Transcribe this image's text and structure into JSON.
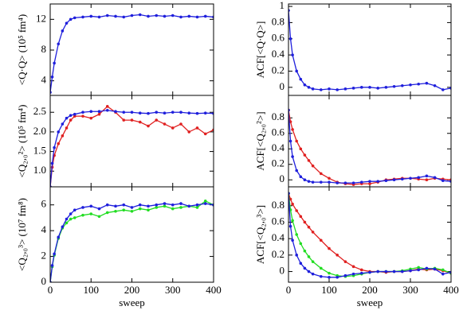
{
  "chart_data": [
    {
      "type": "line",
      "ylabel": "<Q·Q> (10⁵ fm⁴)",
      "show_xtick_labels": false,
      "x": [
        0,
        5,
        10,
        20,
        30,
        40,
        50,
        60,
        80,
        100,
        120,
        140,
        160,
        180,
        200,
        220,
        240,
        260,
        280,
        300,
        320,
        340,
        360,
        380,
        400
      ],
      "xlim": [
        0,
        400
      ],
      "xticks": [
        0,
        100,
        200,
        300,
        400
      ],
      "ylim": [
        2.1,
        14.0
      ],
      "yticks": [
        4,
        8,
        12
      ],
      "series": [
        {
          "color": "#1f1fdc",
          "values": [
            2.5,
            4.5,
            6.3,
            8.8,
            10.5,
            11.5,
            12.0,
            12.2,
            12.3,
            12.4,
            12.3,
            12.5,
            12.4,
            12.3,
            12.5,
            12.6,
            12.4,
            12.5,
            12.4,
            12.5,
            12.3,
            12.4,
            12.3,
            12.4,
            12.3
          ]
        }
      ]
    },
    {
      "type": "line",
      "ylabel": "ACF[<Q·Q>]",
      "show_xtick_labels": false,
      "x": [
        0,
        5,
        10,
        20,
        30,
        40,
        50,
        60,
        80,
        100,
        120,
        140,
        160,
        180,
        200,
        220,
        240,
        260,
        280,
        300,
        320,
        340,
        360,
        380,
        400
      ],
      "xlim": [
        0,
        400
      ],
      "xticks": [
        0,
        100,
        200,
        300,
        400
      ],
      "ylim": [
        -0.1,
        1.03
      ],
      "yticks": [
        0,
        0.2,
        0.4,
        0.6,
        0.8,
        1
      ],
      "series": [
        {
          "color": "#1f1fdc",
          "values": [
            0.95,
            0.6,
            0.4,
            0.2,
            0.1,
            0.03,
            0,
            -0.02,
            -0.03,
            -0.02,
            -0.03,
            -0.02,
            -0.01,
            0,
            0,
            -0.01,
            0,
            0.01,
            0.02,
            0.03,
            0.04,
            0.05,
            0.02,
            -0.03,
            -0.01
          ]
        }
      ]
    },
    {
      "type": "line",
      "ylabel": "<Q₂,₀²> (10⁵ fm⁴)",
      "show_xtick_labels": false,
      "x": [
        0,
        5,
        10,
        20,
        30,
        40,
        50,
        60,
        80,
        100,
        120,
        140,
        160,
        180,
        200,
        220,
        240,
        260,
        280,
        300,
        320,
        340,
        360,
        380,
        400
      ],
      "xlim": [
        0,
        400
      ],
      "xticks": [
        0,
        100,
        200,
        300,
        400
      ],
      "ylim": [
        0.6,
        2.93
      ],
      "yticks": [
        {
          "value": 1,
          "label": "1.0"
        },
        1.5,
        {
          "value": 2,
          "label": "2.0"
        },
        2.5
      ],
      "series": [
        {
          "color": "#e02020",
          "values": [
            0.6,
            1.1,
            1.4,
            1.7,
            1.9,
            2.1,
            2.3,
            2.4,
            2.4,
            2.35,
            2.45,
            2.65,
            2.5,
            2.3,
            2.3,
            2.25,
            2.15,
            2.3,
            2.2,
            2.1,
            2.2,
            2.0,
            2.1,
            1.95,
            2.05
          ]
        },
        {
          "color": "#1f1fdc",
          "values": [
            0.6,
            1.2,
            1.6,
            2.0,
            2.2,
            2.35,
            2.42,
            2.45,
            2.5,
            2.52,
            2.52,
            2.55,
            2.52,
            2.5,
            2.5,
            2.48,
            2.47,
            2.5,
            2.48,
            2.5,
            2.5,
            2.48,
            2.47,
            2.48,
            2.47
          ]
        }
      ]
    },
    {
      "type": "line",
      "ylabel": "ACF[<Q₂,₀²>]",
      "show_xtick_labels": false,
      "x": [
        0,
        5,
        10,
        20,
        30,
        40,
        50,
        60,
        80,
        100,
        120,
        140,
        160,
        180,
        200,
        220,
        240,
        260,
        280,
        300,
        320,
        340,
        360,
        380,
        400
      ],
      "xlim": [
        0,
        400
      ],
      "xticks": [
        0,
        100,
        200,
        300,
        400
      ],
      "ylim": [
        -0.09,
        1.09
      ],
      "yticks": [
        0,
        0.2,
        0.4,
        0.6,
        0.8
      ],
      "series": [
        {
          "color": "#e02020",
          "values": [
            0.9,
            0.75,
            0.65,
            0.5,
            0.4,
            0.32,
            0.25,
            0.18,
            0.08,
            0.02,
            -0.03,
            -0.05,
            -0.06,
            -0.05,
            -0.05,
            -0.03,
            0,
            0.01,
            0.02,
            0.02,
            0.01,
            0,
            0.02,
            0.01,
            0
          ]
        },
        {
          "color": "#1f1fdc",
          "values": [
            0.9,
            0.5,
            0.3,
            0.12,
            0.04,
            0,
            -0.02,
            -0.03,
            -0.03,
            -0.03,
            -0.04,
            -0.04,
            -0.04,
            -0.03,
            -0.02,
            -0.02,
            -0.01,
            0,
            0.01,
            0.02,
            0.03,
            0.05,
            0.03,
            -0.01,
            -0.02
          ]
        }
      ]
    },
    {
      "type": "line",
      "ylabel": "<Q₂,₀³> (10⁷ fm⁸)",
      "xlabel": "sweep",
      "show_xtick_labels": true,
      "x": [
        0,
        5,
        10,
        20,
        30,
        40,
        50,
        60,
        80,
        100,
        120,
        140,
        160,
        180,
        200,
        220,
        240,
        260,
        280,
        300,
        320,
        340,
        360,
        380,
        400
      ],
      "xlim": [
        0,
        400
      ],
      "xticks": [
        0,
        100,
        200,
        300,
        400
      ],
      "ylim": [
        0,
        7.4
      ],
      "yticks": [
        0,
        2,
        4,
        6
      ],
      "series": [
        {
          "color": "#22dd22",
          "values": [
            0,
            1.2,
            2.1,
            3.4,
            4.2,
            4.6,
            4.9,
            5.0,
            5.2,
            5.3,
            5.1,
            5.4,
            5.5,
            5.6,
            5.5,
            5.7,
            5.6,
            5.8,
            5.9,
            5.7,
            5.8,
            5.9,
            5.8,
            6.3,
            6.0
          ]
        },
        {
          "color": "#1f1fdc",
          "values": [
            0,
            1.3,
            2.2,
            3.5,
            4.3,
            4.9,
            5.3,
            5.6,
            5.8,
            5.9,
            5.7,
            6.0,
            5.9,
            6.0,
            5.8,
            6.0,
            5.9,
            6.0,
            6.1,
            6.0,
            6.1,
            5.9,
            6.0,
            6.1,
            6.0
          ]
        }
      ]
    },
    {
      "type": "line",
      "ylabel": "ACF[<Q₂,₀³>]",
      "xlabel": "sweep",
      "show_xtick_labels": true,
      "x": [
        0,
        5,
        10,
        20,
        30,
        40,
        50,
        60,
        80,
        100,
        120,
        140,
        160,
        180,
        200,
        220,
        240,
        260,
        280,
        300,
        320,
        340,
        360,
        380,
        400
      ],
      "xlim": [
        0,
        400
      ],
      "xticks": [
        0,
        100,
        200,
        300,
        400
      ],
      "ylim": [
        -0.13,
        1.03
      ],
      "yticks": [
        0,
        0.2,
        0.4,
        0.6,
        0.8
      ],
      "series": [
        {
          "color": "#e02020",
          "values": [
            0.95,
            0.88,
            0.82,
            0.74,
            0.67,
            0.6,
            0.54,
            0.48,
            0.38,
            0.28,
            0.2,
            0.12,
            0.06,
            0.02,
            0,
            0,
            -0.01,
            0,
            0,
            0.01,
            0.03,
            0.02,
            0.03,
            0.01,
            -0.02
          ]
        },
        {
          "color": "#22dd22",
          "values": [
            0.95,
            0.75,
            0.62,
            0.45,
            0.34,
            0.25,
            0.18,
            0.12,
            0.04,
            -0.02,
            -0.05,
            -0.06,
            -0.05,
            -0.03,
            -0.01,
            0,
            0,
            0,
            0.01,
            0.03,
            0.05,
            0.03,
            0.04,
            0.02,
            -0.02
          ]
        },
        {
          "color": "#1f1fdc",
          "values": [
            0.95,
            0.55,
            0.38,
            0.2,
            0.1,
            0.04,
            0,
            -0.03,
            -0.06,
            -0.07,
            -0.07,
            -0.05,
            -0.03,
            -0.02,
            -0.01,
            0,
            0,
            0,
            0,
            0.01,
            0.02,
            0.04,
            0.03,
            -0.03,
            -0.01
          ]
        }
      ]
    }
  ]
}
